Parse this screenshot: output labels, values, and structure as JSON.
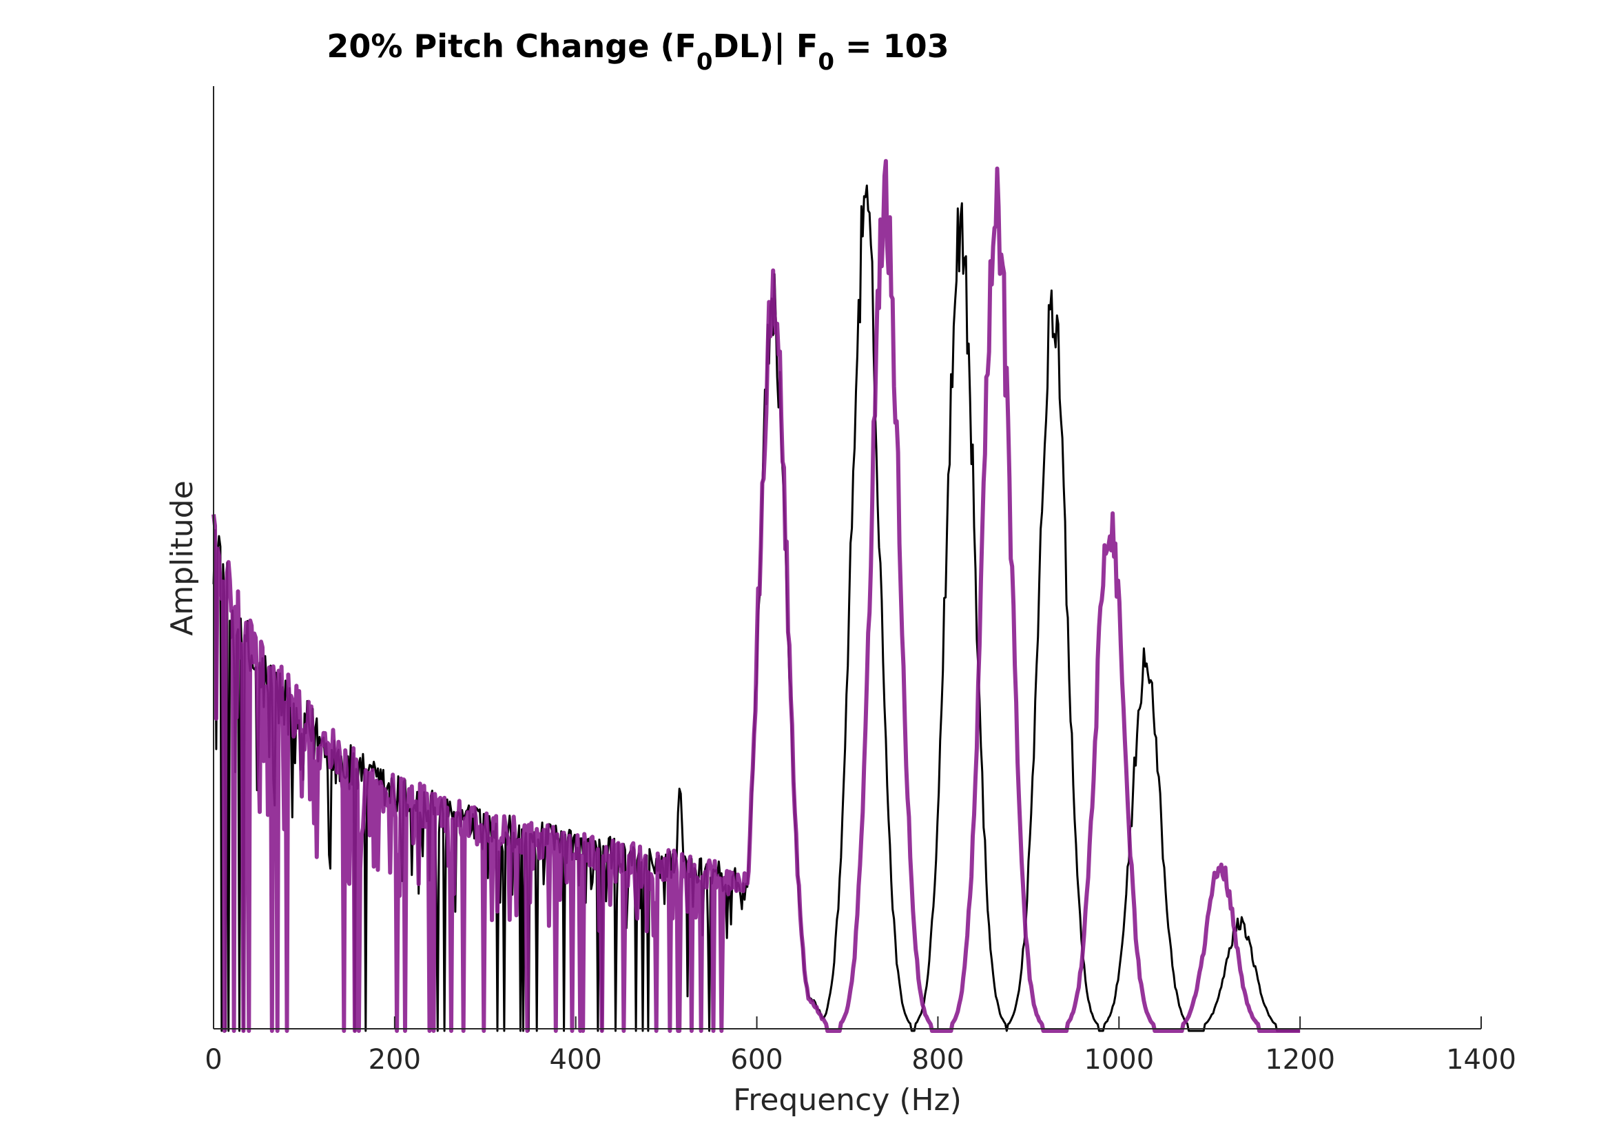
{
  "chart_data": {
    "type": "line",
    "title": {
      "prefix": "20% Pitch Change (F",
      "sub1": "0",
      "middle": "DL)| F",
      "sub2": "0",
      "suffix": " = 103"
    },
    "xlabel": "Frequency (Hz)",
    "ylabel": "Amplitude",
    "xlim": [
      0,
      1400
    ],
    "ylim": [
      0,
      1
    ],
    "x_ticks": [
      0,
      200,
      400,
      600,
      800,
      1000,
      1200,
      1400
    ],
    "x_tick_labels": [
      "0",
      "200",
      "400",
      "600",
      "800",
      "1000",
      "1200",
      "1400"
    ],
    "y_ticks_shown": false,
    "grid": false,
    "legend": "none",
    "series": [
      {
        "color": "#000000",
        "line_width": "thin",
        "noise_floor": {
          "x": [
            0,
            20,
            50,
            100,
            150,
            200,
            250,
            300,
            350,
            400,
            450,
            500,
            550,
            600
          ],
          "y": [
            0.57,
            0.47,
            0.41,
            0.35,
            0.3,
            0.27,
            0.25,
            0.23,
            0.22,
            0.21,
            0.2,
            0.19,
            0.18,
            0.16
          ]
        },
        "peaks": [
          {
            "x": 515,
            "y": 0.28
          },
          {
            "x": 618,
            "y": 0.88
          },
          {
            "x": 720,
            "y": 1.0
          },
          {
            "x": 825,
            "y": 0.99
          },
          {
            "x": 927,
            "y": 0.88
          },
          {
            "x": 1030,
            "y": 0.45
          },
          {
            "x": 1134,
            "y": 0.13
          }
        ]
      },
      {
        "color": "#8b1e8f",
        "line_width": "thick",
        "noise_floor": {
          "x": [
            0,
            20,
            50,
            100,
            150,
            200,
            250,
            300,
            350,
            400,
            450,
            500,
            550,
            600
          ],
          "y": [
            0.58,
            0.48,
            0.42,
            0.35,
            0.3,
            0.27,
            0.25,
            0.23,
            0.22,
            0.21,
            0.2,
            0.19,
            0.18,
            0.16
          ]
        },
        "peaks": [
          {
            "x": 618,
            "y": 0.9
          },
          {
            "x": 742,
            "y": 1.01
          },
          {
            "x": 865,
            "y": 1.0
          },
          {
            "x": 990,
            "y": 0.63
          },
          {
            "x": 1112,
            "y": 0.2
          }
        ]
      }
    ]
  },
  "colors": {
    "axis": "#262626",
    "series_black": "#000000",
    "series_purple": "#8b1e8f"
  }
}
